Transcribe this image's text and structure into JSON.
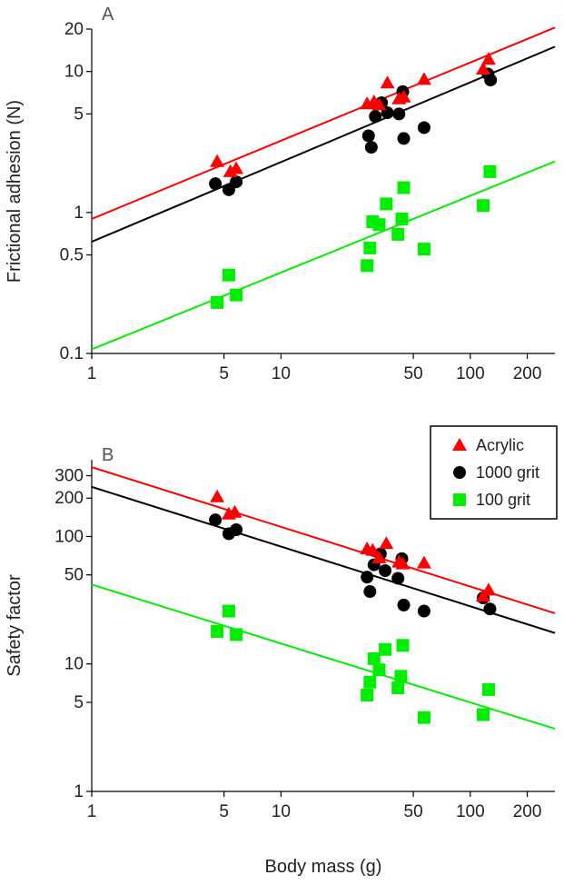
{
  "chart_data": [
    {
      "panel": "A",
      "type": "scatter",
      "xlabel": "",
      "ylabel": "Frictional adhesion (N)",
      "xscale": "log",
      "yscale": "log",
      "xlim": [
        1,
        280
      ],
      "ylim": [
        0.1,
        20
      ],
      "xticks": [
        1,
        5,
        10,
        50,
        100,
        200
      ],
      "xtick_labels": [
        "1",
        "5",
        "10",
        "50",
        "100",
        "200"
      ],
      "yticks": [
        0.1,
        0.5,
        1,
        5,
        10,
        20
      ],
      "ytick_labels": [
        "0.1",
        "0.5",
        "1",
        "5",
        "10",
        "20"
      ],
      "series": [
        {
          "name": "Acrylic",
          "marker": "triangle",
          "color": "#ff0000",
          "points": [
            [
              4.6,
              2.3
            ],
            [
              5.4,
              1.95
            ],
            [
              5.8,
              2.05
            ],
            [
              28.5,
              5.9
            ],
            [
              31,
              6.1
            ],
            [
              33,
              5.8
            ],
            [
              36.5,
              8.3
            ],
            [
              42,
              6.4
            ],
            [
              44.5,
              6.6
            ],
            [
              57,
              8.8
            ],
            [
              117,
              10.4
            ],
            [
              125,
              12.2
            ]
          ],
          "fit": [
            [
              1,
              0.9
            ],
            [
              280,
              20.5
            ]
          ]
        },
        {
          "name": "1000 grit",
          "marker": "circle",
          "color": "#000000",
          "points": [
            [
              4.5,
              1.6
            ],
            [
              5.3,
              1.45
            ],
            [
              5.8,
              1.65
            ],
            [
              29,
              3.5
            ],
            [
              30,
              2.9
            ],
            [
              31.5,
              4.8
            ],
            [
              34,
              6.0
            ],
            [
              36.5,
              5.1
            ],
            [
              42,
              5.0
            ],
            [
              44,
              7.2
            ],
            [
              44.5,
              3.35
            ],
            [
              57,
              4.0
            ],
            [
              124,
              9.6
            ],
            [
              128,
              8.7
            ]
          ],
          "fit": [
            [
              1,
              0.62
            ],
            [
              280,
              15
            ]
          ]
        },
        {
          "name": "100 grit",
          "marker": "square",
          "color": "#00ee00",
          "points": [
            [
              4.6,
              0.23
            ],
            [
              5.3,
              0.36
            ],
            [
              5.8,
              0.26
            ],
            [
              28.5,
              0.42
            ],
            [
              29.5,
              0.56
            ],
            [
              30.5,
              0.86
            ],
            [
              33,
              0.82
            ],
            [
              36,
              1.15
            ],
            [
              41.5,
              0.7
            ],
            [
              43.5,
              0.9
            ],
            [
              44.5,
              1.5
            ],
            [
              57,
              0.55
            ],
            [
              117,
              1.12
            ],
            [
              127,
              1.95
            ]
          ],
          "fit": [
            [
              1,
              0.107
            ],
            [
              280,
              2.3
            ]
          ]
        }
      ]
    },
    {
      "panel": "B",
      "type": "scatter",
      "xlabel": "Body mass (g)",
      "ylabel": "Safety factor",
      "xscale": "log",
      "yscale": "log",
      "xlim": [
        1,
        280
      ],
      "ylim": [
        1,
        400
      ],
      "xticks": [
        1,
        5,
        10,
        50,
        100,
        200
      ],
      "xtick_labels": [
        "1",
        "5",
        "10",
        "50",
        "100",
        "200"
      ],
      "yticks": [
        1,
        5,
        10,
        50,
        100,
        200,
        300
      ],
      "ytick_labels": [
        "1",
        "5",
        "10",
        "50",
        "100",
        "200",
        "300"
      ],
      "legend": {
        "position": "top-right",
        "entries": [
          "Acrylic",
          "1000 grit",
          "100 grit"
        ]
      },
      "series": [
        {
          "name": "Acrylic",
          "marker": "triangle",
          "color": "#ff0000",
          "points": [
            [
              4.6,
              205
            ],
            [
              5.3,
              150
            ],
            [
              5.7,
              155
            ],
            [
              28.5,
              80
            ],
            [
              30.5,
              78
            ],
            [
              33,
              68
            ],
            [
              36,
              88
            ],
            [
              42,
              63
            ],
            [
              44,
              61
            ],
            [
              57,
              62
            ],
            [
              117,
              34
            ],
            [
              125,
              38
            ]
          ],
          "fit": [
            [
              1,
              350
            ],
            [
              280,
              25
            ]
          ]
        },
        {
          "name": "1000 grit",
          "marker": "circle",
          "color": "#000000",
          "points": [
            [
              4.5,
              135
            ],
            [
              5.3,
              105
            ],
            [
              5.8,
              113
            ],
            [
              28.5,
              48
            ],
            [
              29.5,
              37
            ],
            [
              31,
              60
            ],
            [
              33.5,
              73
            ],
            [
              35.5,
              54
            ],
            [
              41.5,
              47
            ],
            [
              43.5,
              67
            ],
            [
              44.5,
              29
            ],
            [
              57,
              26
            ],
            [
              117,
              33
            ],
            [
              127,
              27
            ]
          ],
          "fit": [
            [
              1,
              245
            ],
            [
              280,
              17.5
            ]
          ]
        },
        {
          "name": "100 grit",
          "marker": "square",
          "color": "#00ee00",
          "points": [
            [
              4.6,
              18
            ],
            [
              5.3,
              26
            ],
            [
              5.8,
              17
            ],
            [
              28.5,
              5.7
            ],
            [
              29.5,
              7.2
            ],
            [
              31,
              11
            ],
            [
              33,
              9
            ],
            [
              35.5,
              13
            ],
            [
              41.5,
              6.5
            ],
            [
              43,
              8
            ],
            [
              44,
              14
            ],
            [
              57,
              3.8
            ],
            [
              117,
              4
            ],
            [
              125,
              6.3
            ]
          ],
          "fit": [
            [
              1,
              42
            ],
            [
              280,
              3.1
            ]
          ]
        }
      ]
    }
  ]
}
